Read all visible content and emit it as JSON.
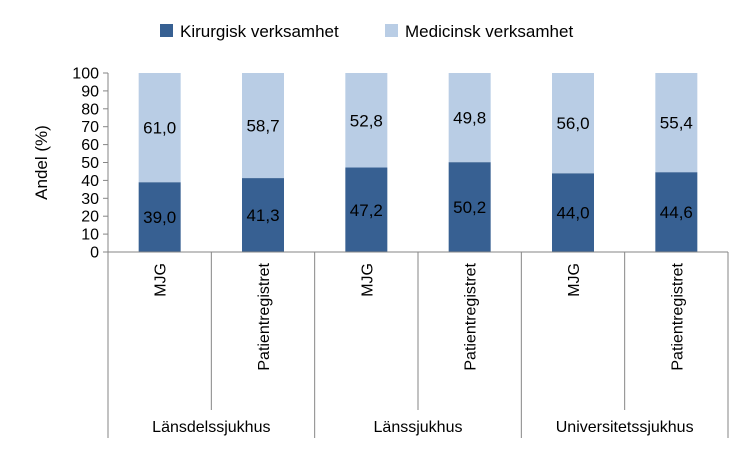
{
  "chart_data": {
    "type": "bar",
    "stacked": true,
    "ylabel": "Andel (%)",
    "ylim": [
      0,
      100
    ],
    "yticks": [
      0,
      10,
      20,
      30,
      40,
      50,
      60,
      70,
      80,
      90,
      100
    ],
    "legend_position": "top",
    "groups": [
      "Länsdelssjukhus",
      "Länssjukhus",
      "Universitetssjukhus"
    ],
    "categories": [
      "MJG",
      "Patientregistret",
      "MJG",
      "Patientregistret",
      "MJG",
      "Patientregistret"
    ],
    "series": [
      {
        "name": "Kirurgisk verksamhet",
        "color": "#376092",
        "values": [
          39.0,
          41.3,
          47.2,
          50.2,
          44.0,
          44.6
        ],
        "labels": [
          "39,0",
          "41,3",
          "47,2",
          "50,2",
          "44,0",
          "44,6"
        ]
      },
      {
        "name": "Medicinsk verksamhet",
        "color": "#B9CDE5",
        "values": [
          61.0,
          58.7,
          52.8,
          49.8,
          56.0,
          55.4
        ],
        "labels": [
          "61,0",
          "58,7",
          "52,8",
          "49,8",
          "56,0",
          "55,4"
        ]
      }
    ]
  }
}
